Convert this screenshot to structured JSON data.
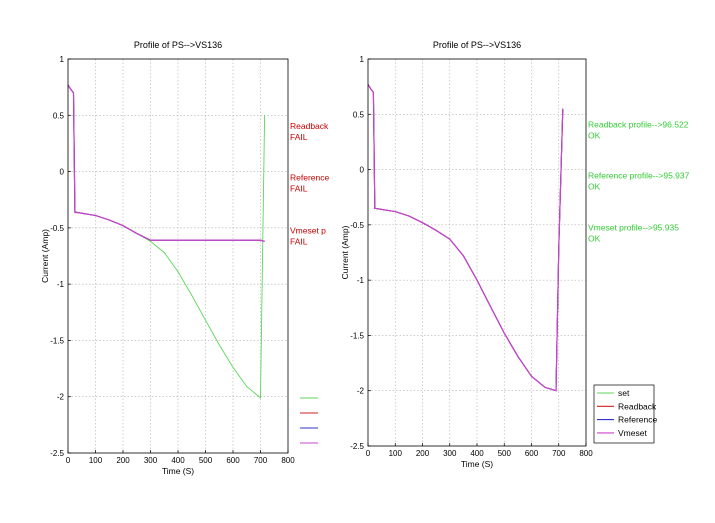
{
  "chart_data": [
    {
      "type": "line",
      "title": "Profile of PS-->VS136",
      "xlabel": "Time (S)",
      "ylabel": "Current (Amp)",
      "xlim": [
        0,
        800
      ],
      "ylim": [
        -2.5,
        1
      ],
      "xticks": [
        0,
        100,
        200,
        300,
        400,
        500,
        600,
        700,
        800
      ],
      "yticks": [
        1,
        0.5,
        0,
        -0.5,
        -1,
        -1.5,
        -2,
        -2.5
      ],
      "xtick_labels": [
        "0",
        "100",
        "200",
        "300",
        "400",
        "500",
        "600",
        "700",
        "800"
      ],
      "ytick_labels": [
        "1",
        "0.5",
        "0",
        "-0.5",
        "-1",
        "-1.5",
        "-2",
        "-2.5"
      ],
      "grid": true,
      "legend_placement": "right, outside (labels clipped)",
      "series": [
        {
          "color": "#5cd65c",
          "x": [
            0,
            10,
            20,
            25,
            100,
            150,
            200,
            250,
            300,
            350,
            400,
            450,
            500,
            550,
            600,
            650,
            700,
            715
          ],
          "y": [
            0.77,
            0.73,
            0.7,
            -0.36,
            -0.39,
            -0.43,
            -0.48,
            -0.55,
            -0.62,
            -0.72,
            -0.89,
            -1.1,
            -1.32,
            -1.54,
            -1.74,
            -1.91,
            -2.01,
            0.5
          ]
        },
        {
          "color": "#cc2222",
          "x": [
            0,
            10,
            20,
            25,
            100,
            150,
            200,
            250,
            300,
            350,
            400,
            450,
            500,
            550,
            600,
            650,
            700,
            715
          ],
          "y": [
            0.77,
            0.73,
            0.7,
            -0.36,
            -0.39,
            -0.43,
            -0.48,
            -0.55,
            -0.61,
            -0.61,
            -0.61,
            -0.61,
            -0.61,
            -0.61,
            -0.61,
            -0.61,
            -0.61,
            -0.62
          ]
        },
        {
          "color": "#3333cc",
          "x": [
            0,
            10,
            20,
            25,
            100,
            150,
            200,
            250,
            300,
            350,
            400,
            450,
            500,
            550,
            600,
            650,
            700,
            715
          ],
          "y": [
            0.77,
            0.73,
            0.7,
            -0.36,
            -0.39,
            -0.43,
            -0.48,
            -0.55,
            -0.61,
            -0.61,
            -0.61,
            -0.61,
            -0.61,
            -0.61,
            -0.61,
            -0.61,
            -0.61,
            -0.62
          ]
        },
        {
          "color": "#cc44cc",
          "x": [
            0,
            10,
            20,
            25,
            100,
            150,
            200,
            250,
            300,
            350,
            400,
            450,
            500,
            550,
            600,
            650,
            700,
            715
          ],
          "y": [
            0.77,
            0.73,
            0.7,
            -0.36,
            -0.39,
            -0.43,
            -0.48,
            -0.55,
            -0.61,
            -0.61,
            -0.61,
            -0.61,
            -0.61,
            -0.61,
            -0.61,
            -0.61,
            -0.61,
            -0.62
          ]
        }
      ],
      "annotations": [
        {
          "lines": [
            "Readback",
            "FAIL"
          ],
          "color": "#cc0000",
          "y": 0.38
        },
        {
          "lines": [
            "Reference",
            "FAIL"
          ],
          "color": "#cc0000",
          "y": -0.08
        },
        {
          "lines": [
            "Vmeset p",
            "FAIL"
          ],
          "color": "#cc0000",
          "y": -0.55
        }
      ]
    },
    {
      "type": "line",
      "title": "Profile of PS-->VS136",
      "xlabel": "Time (S)",
      "ylabel": "Current (Amp)",
      "xlim": [
        0,
        800
      ],
      "ylim": [
        -2.5,
        1
      ],
      "xticks": [
        0,
        100,
        200,
        300,
        400,
        500,
        600,
        700,
        800
      ],
      "yticks": [
        1,
        0.5,
        0,
        -0.5,
        -1,
        -1.5,
        -2,
        -2.5
      ],
      "xtick_labels": [
        "0",
        "100",
        "200",
        "300",
        "400",
        "500",
        "600",
        "700",
        "800"
      ],
      "ytick_labels": [
        "1",
        "0.5",
        "0",
        "-0.5",
        "-1",
        "-1.5",
        "-2",
        "-2.5"
      ],
      "grid": true,
      "legend_placement": "bottom-right",
      "series": [
        {
          "name": "set",
          "color": "#5cd65c",
          "x": [
            0,
            10,
            20,
            25,
            100,
            150,
            200,
            250,
            300,
            350,
            400,
            450,
            500,
            550,
            600,
            650,
            690,
            700,
            715
          ],
          "y": [
            0.77,
            0.73,
            0.7,
            -0.35,
            -0.38,
            -0.42,
            -0.48,
            -0.55,
            -0.63,
            -0.78,
            -1.0,
            -1.24,
            -1.48,
            -1.69,
            -1.87,
            -1.97,
            -2.0,
            -0.7,
            0.55
          ]
        },
        {
          "name": "Readback",
          "color": "#cc2222",
          "x": [
            0,
            10,
            20,
            25,
            100,
            150,
            200,
            250,
            300,
            350,
            400,
            450,
            500,
            550,
            600,
            650,
            690,
            700,
            715
          ],
          "y": [
            0.77,
            0.73,
            0.7,
            -0.35,
            -0.38,
            -0.42,
            -0.48,
            -0.55,
            -0.63,
            -0.78,
            -1.0,
            -1.24,
            -1.48,
            -1.69,
            -1.87,
            -1.97,
            -2.0,
            -0.7,
            0.55
          ]
        },
        {
          "name": "Reference",
          "color": "#3333cc",
          "x": [
            0,
            10,
            20,
            25,
            100,
            150,
            200,
            250,
            300,
            350,
            400,
            450,
            500,
            550,
            600,
            650,
            690,
            700,
            715
          ],
          "y": [
            0.77,
            0.73,
            0.7,
            -0.35,
            -0.38,
            -0.42,
            -0.48,
            -0.55,
            -0.63,
            -0.78,
            -1.0,
            -1.24,
            -1.48,
            -1.69,
            -1.87,
            -1.97,
            -2.0,
            -0.7,
            0.55
          ]
        },
        {
          "name": "Vmeset",
          "color": "#cc44cc",
          "x": [
            0,
            10,
            20,
            25,
            100,
            150,
            200,
            250,
            300,
            350,
            400,
            450,
            500,
            550,
            600,
            650,
            690,
            700,
            715
          ],
          "y": [
            0.77,
            0.73,
            0.7,
            -0.35,
            -0.38,
            -0.42,
            -0.48,
            -0.55,
            -0.63,
            -0.78,
            -1.0,
            -1.24,
            -1.48,
            -1.69,
            -1.87,
            -1.97,
            -2.0,
            -0.7,
            0.55
          ]
        }
      ],
      "annotations": [
        {
          "lines": [
            "Readback profile-->96.522",
            "OK"
          ],
          "color": "#33cc33",
          "y": 0.38
        },
        {
          "lines": [
            "Reference profile-->95.937",
            "OK"
          ],
          "color": "#33cc33",
          "y": -0.08
        },
        {
          "lines": [
            "Vmeset profile-->95.935",
            "OK"
          ],
          "color": "#33cc33",
          "y": -0.55
        }
      ]
    }
  ]
}
